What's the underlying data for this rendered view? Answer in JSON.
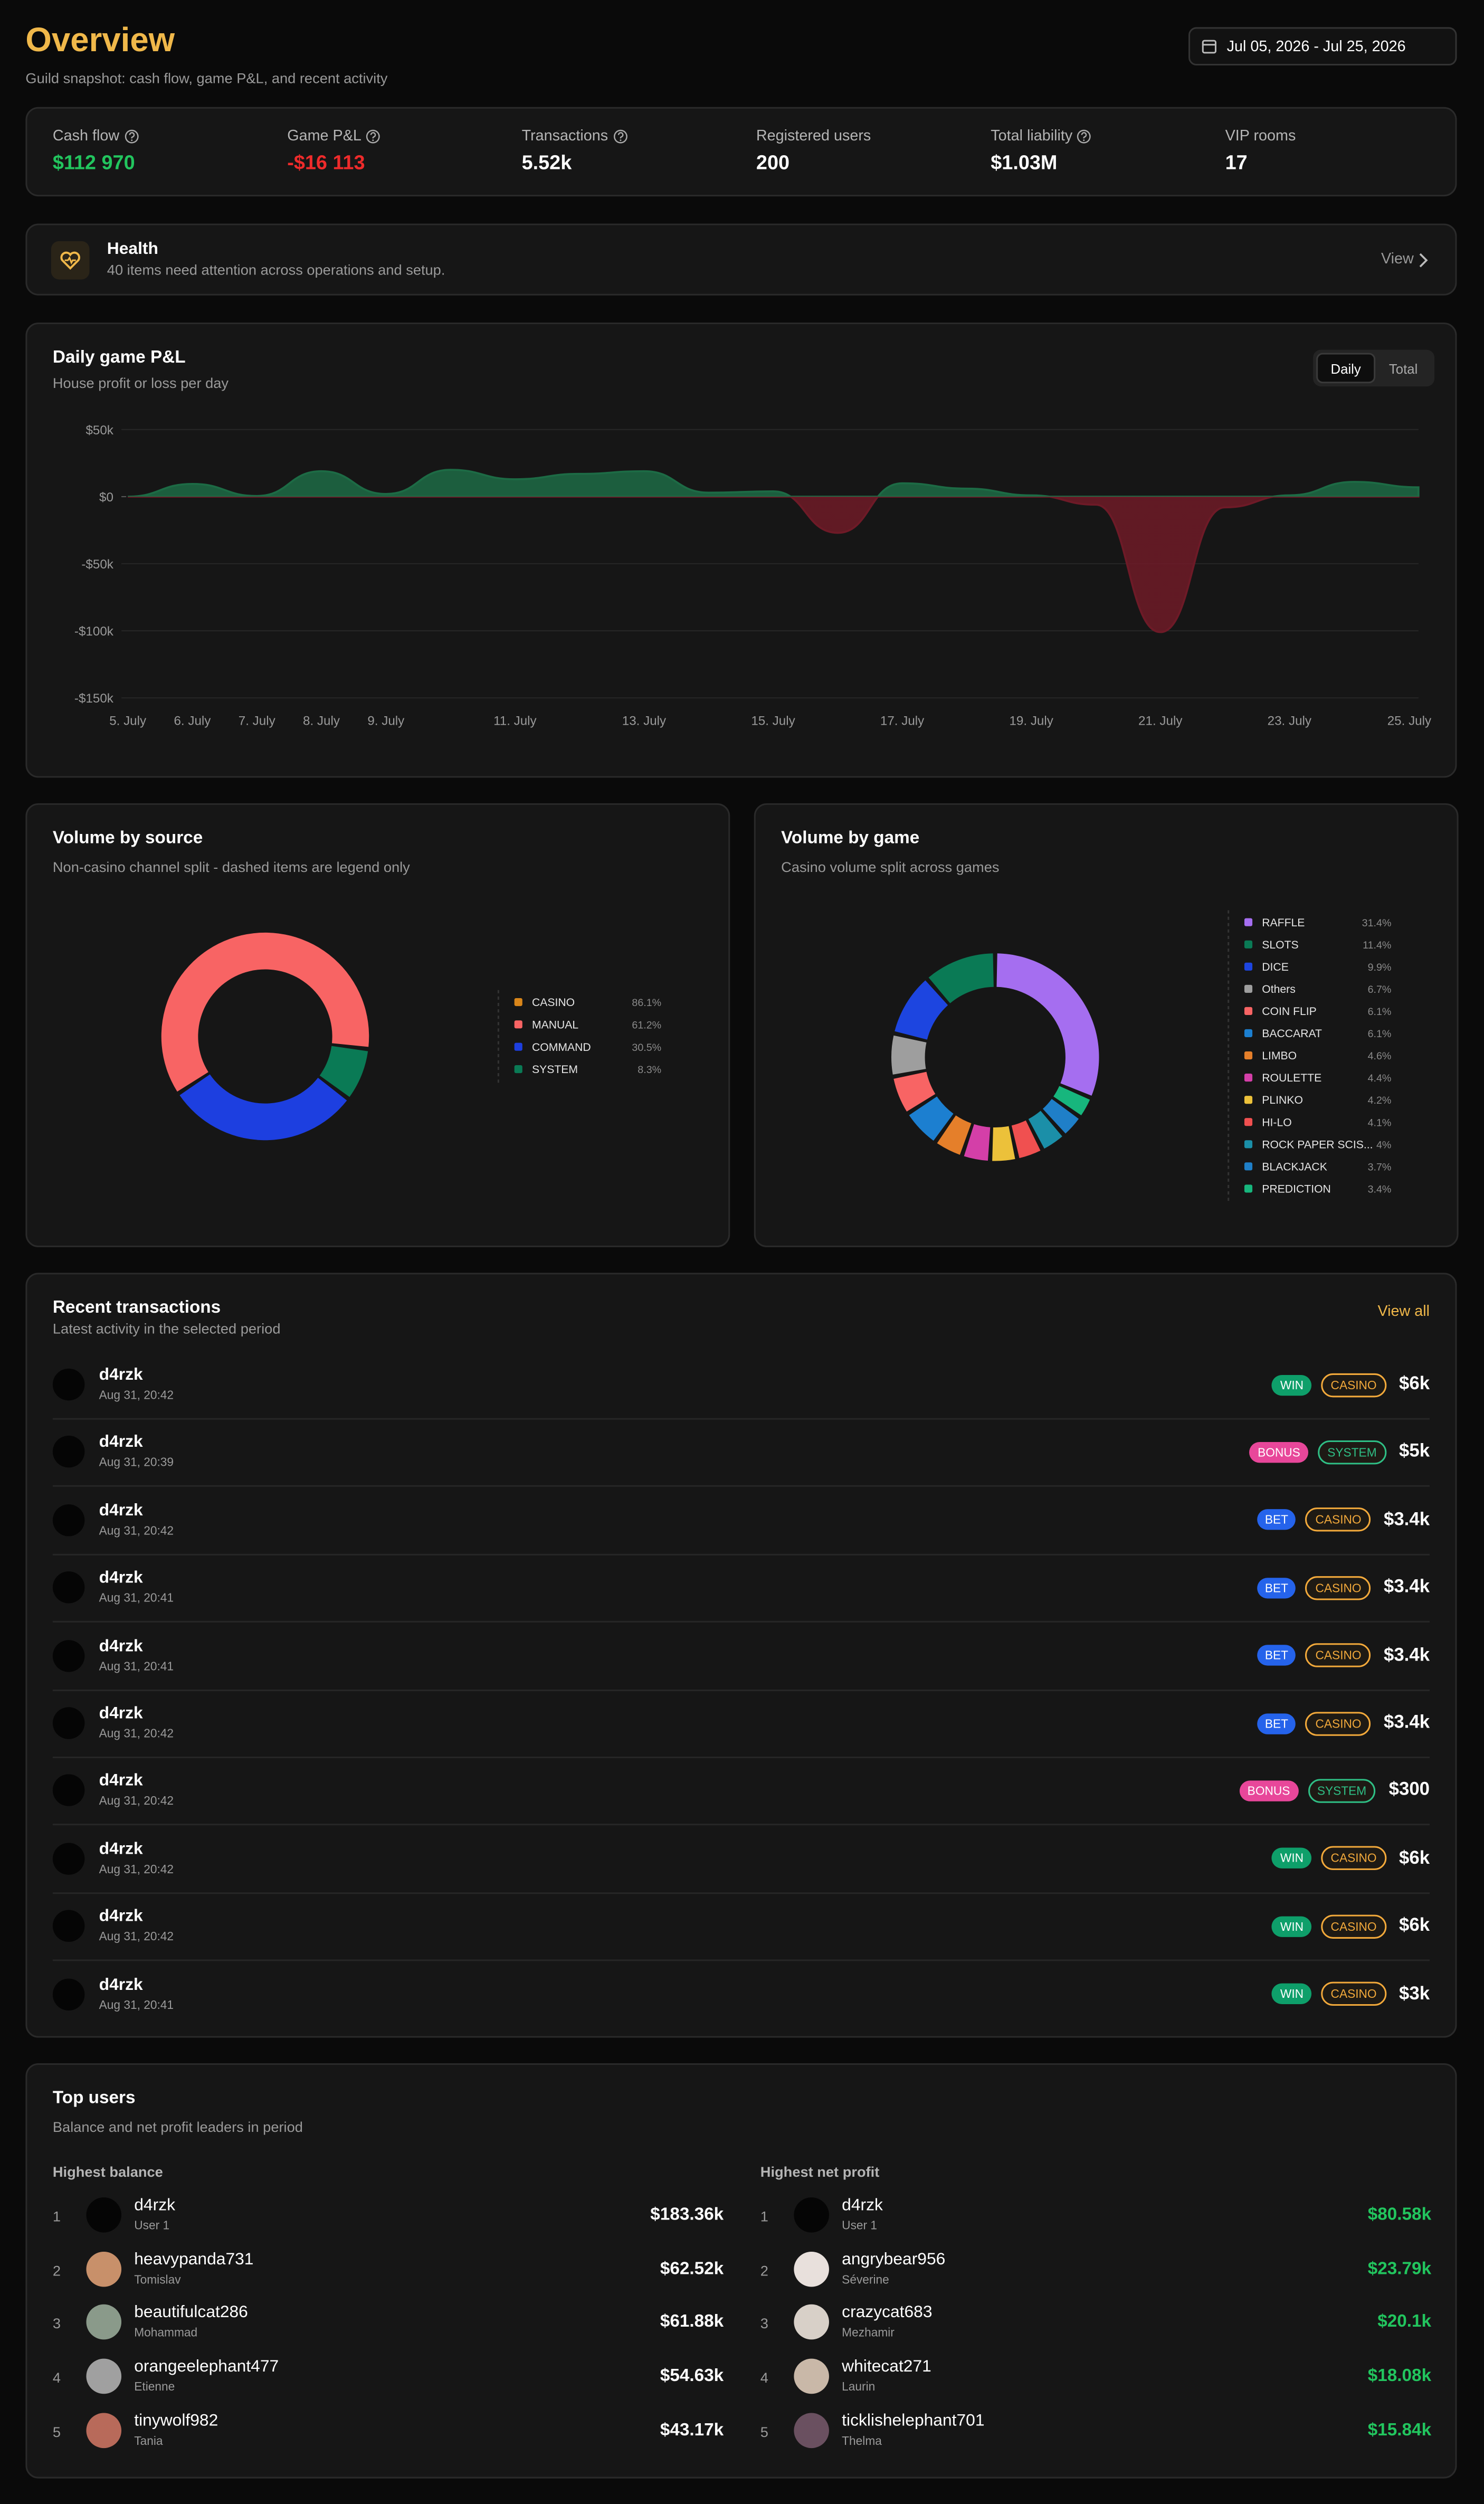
{
  "header": {
    "title": "Overview",
    "subtitle": "Guild snapshot: cash flow, game P&L, and recent activity",
    "date_range": "Jul 05, 2026 - Jul 25, 2026"
  },
  "stats": [
    {
      "label": "Cash flow",
      "value": "$112 970",
      "color": "#22c55e",
      "help": true
    },
    {
      "label": "Game P&L",
      "value": "-$16 113",
      "color": "#ef2b2b",
      "help": true
    },
    {
      "label": "Transactions",
      "value": "5.52k",
      "color": "#ffffff",
      "help": true
    },
    {
      "label": "Registered users",
      "value": "200",
      "color": "#ffffff",
      "help": false
    },
    {
      "label": "Total liability",
      "value": "$1.03M",
      "color": "#ffffff",
      "help": true
    },
    {
      "label": "VIP rooms",
      "value": "17",
      "color": "#ffffff",
      "help": false
    }
  ],
  "health": {
    "title": "Health",
    "text": "40 items need attention across operations and setup.",
    "action": "View"
  },
  "pnl_chart": {
    "type": "area",
    "title": "Daily game P&L",
    "subtitle": "House profit or loss per day",
    "toggle": [
      "Daily",
      "Total"
    ],
    "categories": [
      "5. July",
      "6. July",
      "7. July",
      "8. July",
      "9. July",
      null,
      "11. July",
      null,
      "13. July",
      null,
      "15. July",
      null,
      "17. July",
      null,
      "19. July",
      null,
      "21. July",
      null,
      "23. July",
      null,
      "25. July"
    ],
    "values": [
      0,
      9500,
      500,
      19000,
      2000,
      20000,
      13000,
      17000,
      19000,
      3000,
      4000,
      -27000,
      10000,
      6000,
      1000,
      -6000,
      -101000,
      -8000,
      1000,
      11000,
      7000
    ],
    "positive_color": "#1d6b45",
    "negative_color": "#6e1a27",
    "ylim": [
      -150000,
      50000
    ],
    "yticks": [
      {
        "value": -150000,
        "label": "-$150k"
      },
      {
        "value": -100000,
        "label": "-$100k"
      },
      {
        "value": -50000,
        "label": "-$50k"
      },
      {
        "value": 0,
        "label": "$0"
      },
      {
        "value": 50000,
        "label": "$50k"
      }
    ],
    "grid": true
  },
  "source_chart": {
    "type": "donut",
    "title": "Volume by source",
    "subtitle": "Non-casino channel split - dashed items are legend only",
    "categories": [
      "CASINO",
      "MANUAL",
      "COMMAND",
      "SYSTEM"
    ],
    "values": [
      86.1,
      61.2,
      30.5,
      8.3
    ],
    "value_labels": [
      "86.1%",
      "61.2%",
      "30.5%",
      "8.3%"
    ],
    "colors": [
      "#d9861a",
      "#f86464",
      "#1d3fe0",
      "#0a7a55"
    ],
    "legend_only": [
      true,
      false,
      false,
      false
    ]
  },
  "game_chart": {
    "type": "donut",
    "title": "Volume by game",
    "subtitle": "Casino volume split across games",
    "categories": [
      "RAFFLE",
      "SLOTS",
      "DICE",
      "Others",
      "COIN FLIP",
      "BACCARAT",
      "LIMBO",
      "ROULETTE",
      "PLINKO",
      "HI-LO",
      "ROCK PAPER SCIS...",
      "BLACKJACK",
      "PREDICTION"
    ],
    "values": [
      31.4,
      11.4,
      9.9,
      6.7,
      6.1,
      6.1,
      4.6,
      4.4,
      4.2,
      4.1,
      4,
      3.7,
      3.4
    ],
    "value_labels": [
      "31.4%",
      "11.4%",
      "9.9%",
      "6.7%",
      "6.1%",
      "6.1%",
      "4.6%",
      "4.4%",
      "4.2%",
      "4.1%",
      "4%",
      "3.7%",
      "3.4%"
    ],
    "colors": [
      "#a56ef0",
      "#0a7a55",
      "#1d45e0",
      "#9e9e9e",
      "#f86464",
      "#1c7fd0",
      "#e57f2a",
      "#d43fa8",
      "#ecc13a",
      "#f05050",
      "#1b8fa8",
      "#1f7fc8",
      "#17b67d"
    ],
    "legend_only": [
      false,
      false,
      false,
      false,
      false,
      false,
      false,
      false,
      false,
      false,
      false,
      false,
      false
    ]
  },
  "transactions": {
    "title": "Recent transactions",
    "subtitle": "Latest activity in the selected period",
    "action": "View all",
    "rows": [
      {
        "user": "d4rzk",
        "time": "Aug 31, 20:42",
        "type": "WIN",
        "type_color": "#0e9f6a",
        "source": "CASINO",
        "source_color": "#f2a93b",
        "amount": "$6k"
      },
      {
        "user": "d4rzk",
        "time": "Aug 31, 20:39",
        "type": "BONUS",
        "type_color": "#e8479a",
        "source": "SYSTEM",
        "source_color": "#2fbf85",
        "amount": "$5k"
      },
      {
        "user": "d4rzk",
        "time": "Aug 31, 20:42",
        "type": "BET",
        "type_color": "#2563eb",
        "source": "CASINO",
        "source_color": "#f2a93b",
        "amount": "$3.4k"
      },
      {
        "user": "d4rzk",
        "time": "Aug 31, 20:41",
        "type": "BET",
        "type_color": "#2563eb",
        "source": "CASINO",
        "source_color": "#f2a93b",
        "amount": "$3.4k"
      },
      {
        "user": "d4rzk",
        "time": "Aug 31, 20:41",
        "type": "BET",
        "type_color": "#2563eb",
        "source": "CASINO",
        "source_color": "#f2a93b",
        "amount": "$3.4k"
      },
      {
        "user": "d4rzk",
        "time": "Aug 31, 20:42",
        "type": "BET",
        "type_color": "#2563eb",
        "source": "CASINO",
        "source_color": "#f2a93b",
        "amount": "$3.4k"
      },
      {
        "user": "d4rzk",
        "time": "Aug 31, 20:42",
        "type": "BONUS",
        "type_color": "#e8479a",
        "source": "SYSTEM",
        "source_color": "#2fbf85",
        "amount": "$300"
      },
      {
        "user": "d4rzk",
        "time": "Aug 31, 20:42",
        "type": "WIN",
        "type_color": "#0e9f6a",
        "source": "CASINO",
        "source_color": "#f2a93b",
        "amount": "$6k"
      },
      {
        "user": "d4rzk",
        "time": "Aug 31, 20:42",
        "type": "WIN",
        "type_color": "#0e9f6a",
        "source": "CASINO",
        "source_color": "#f2a93b",
        "amount": "$6k"
      },
      {
        "user": "d4rzk",
        "time": "Aug 31, 20:41",
        "type": "WIN",
        "type_color": "#0e9f6a",
        "source": "CASINO",
        "source_color": "#f2a93b",
        "amount": "$3k"
      }
    ]
  },
  "top_users": {
    "title": "Top users",
    "subtitle": "Balance and net profit leaders in period",
    "columns": [
      {
        "title": "Highest balance",
        "amount_color": "#ffffff",
        "rows": [
          {
            "rank": 1,
            "name": "d4rzk",
            "sub": "User 1",
            "amount": "$183.36k",
            "avatar": "#050505"
          },
          {
            "rank": 2,
            "name": "heavypanda731",
            "sub": "Tomislav",
            "amount": "$62.52k",
            "avatar": "#c8906a"
          },
          {
            "rank": 3,
            "name": "beautifulcat286",
            "sub": "Mohammad",
            "amount": "$61.88k",
            "avatar": "#8a9a8a"
          },
          {
            "rank": 4,
            "name": "orangeelephant477",
            "sub": "Etienne",
            "amount": "$54.63k",
            "avatar": "#a0a0a0"
          },
          {
            "rank": 5,
            "name": "tinywolf982",
            "sub": "Tania",
            "amount": "$43.17k",
            "avatar": "#b86a5a"
          }
        ]
      },
      {
        "title": "Highest net profit",
        "amount_color": "#22c55e",
        "rows": [
          {
            "rank": 1,
            "name": "d4rzk",
            "sub": "User 1",
            "amount": "$80.58k",
            "avatar": "#050505"
          },
          {
            "rank": 2,
            "name": "angrybear956",
            "sub": "Séverine",
            "amount": "$23.79k",
            "avatar": "#e8e0dc"
          },
          {
            "rank": 3,
            "name": "crazycat683",
            "sub": "Mezhamir",
            "amount": "$20.1k",
            "avatar": "#d8d0c8"
          },
          {
            "rank": 4,
            "name": "whitecat271",
            "sub": "Laurin",
            "amount": "$18.08k",
            "avatar": "#c9b8a8"
          },
          {
            "rank": 5,
            "name": "ticklishelephant701",
            "sub": "Thelma",
            "amount": "$15.84k",
            "avatar": "#6a5060"
          }
        ]
      }
    ]
  }
}
